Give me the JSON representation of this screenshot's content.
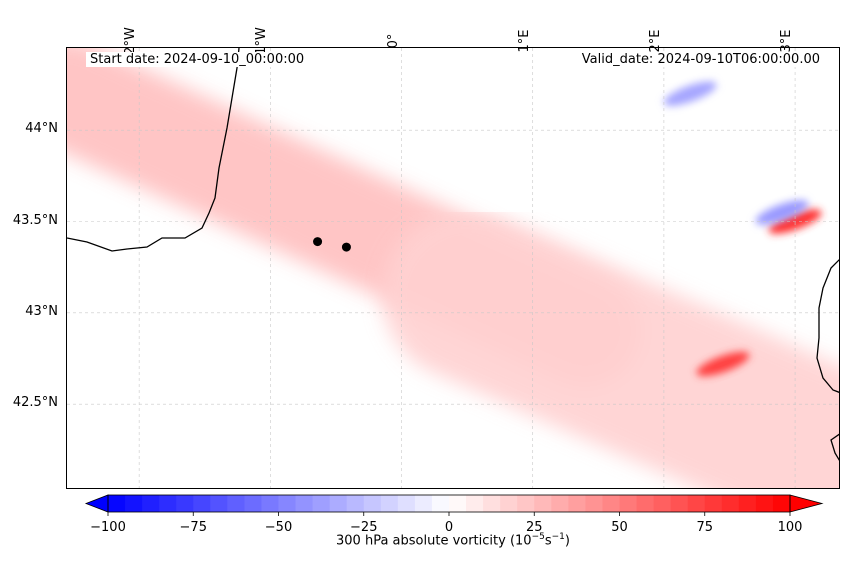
{
  "annotations": {
    "start_date": "Start date: 2024-09-10_00:00:00",
    "valid_date": "Valid_date: 2024-09-10T06:00:00.00"
  },
  "chart_data": {
    "type": "heatmap",
    "title": "",
    "variable_label": "300 hPa absolute vorticity (10",
    "variable_exp": "−5",
    "variable_unit": "s",
    "variable_unit_exp": "−1",
    "lon_range": [
      -2.55,
      3.35
    ],
    "lat_range": [
      42.03,
      44.45
    ],
    "lon_ticks": [
      -2,
      -1,
      0,
      1,
      2,
      3
    ],
    "lon_tick_labels": [
      "2°W",
      "1°W",
      "0°",
      "1°E",
      "2°E",
      "3°E"
    ],
    "lat_ticks": [
      42.5,
      43,
      43.5,
      44
    ],
    "lat_tick_labels": [
      "42.5°N",
      "43°N",
      "43.5°N",
      "44°N"
    ],
    "grid": true,
    "colorbar": {
      "range": [
        -100,
        100
      ],
      "step": 5,
      "ticks": [
        -100,
        -75,
        -50,
        -25,
        0,
        25,
        50,
        75,
        100
      ],
      "tick_labels": [
        "−100",
        "−75",
        "−50",
        "−25",
        "0",
        "25",
        "50",
        "75",
        "100"
      ],
      "low_color": "#0000ff",
      "mid_color": "#ffffff",
      "high_color": "#ff0000",
      "extend": "both"
    },
    "points": [
      {
        "lon": -0.64,
        "lat": 43.39
      },
      {
        "lon": -0.42,
        "lat": 43.36
      }
    ],
    "field_features": [
      {
        "kind": "band",
        "desc": "positive vorticity band",
        "from": [
          -2.55,
          44.2
        ],
        "to": [
          1.4,
          42.9
        ],
        "value": 25
      },
      {
        "kind": "band",
        "desc": "broad positive region",
        "from": [
          0.5,
          43.1
        ],
        "to": [
          3.35,
          42.2
        ],
        "value": 18
      },
      {
        "kind": "max",
        "lon": 3.0,
        "lat": 43.5,
        "value": 80
      },
      {
        "kind": "max",
        "lon": 2.45,
        "lat": 42.72,
        "value": 75
      },
      {
        "kind": "min",
        "lon": 2.9,
        "lat": 43.55,
        "value": -40
      },
      {
        "kind": "min",
        "lon": 2.2,
        "lat": 44.2,
        "value": -35
      }
    ]
  }
}
